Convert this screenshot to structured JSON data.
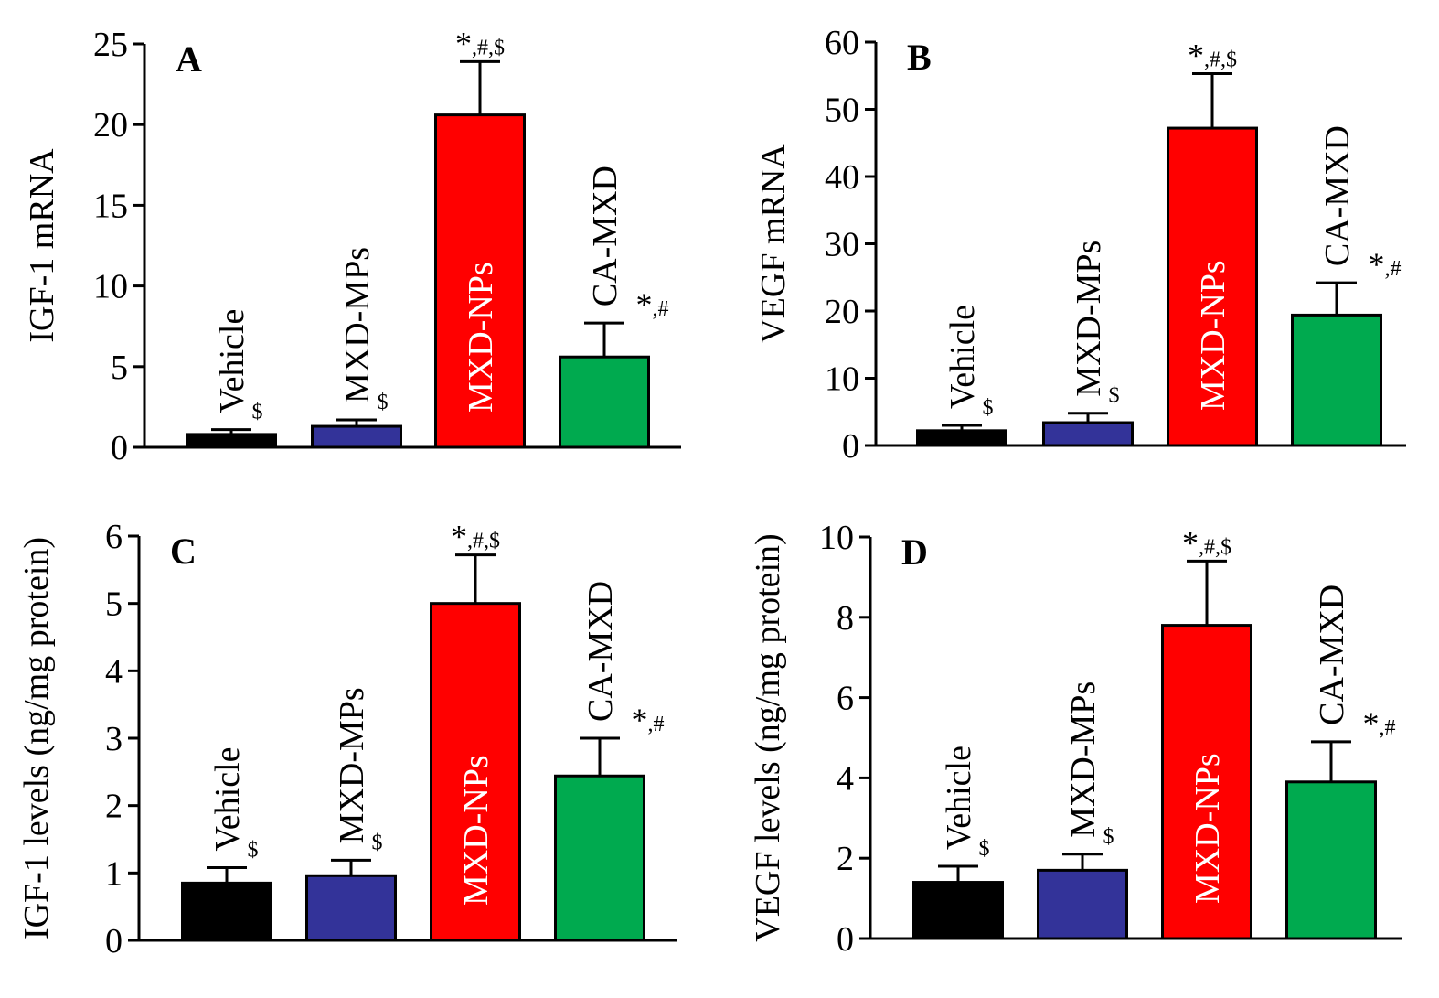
{
  "chart_data": [
    {
      "panel": "A",
      "type": "bar",
      "title": "A",
      "xlabel": "",
      "ylabel": "IGF-1 mRNA",
      "ylim": [
        0,
        25
      ],
      "yticks": [
        0,
        5,
        10,
        15,
        20,
        25
      ],
      "categories": [
        "Vehicle",
        "MXD-MPs",
        "MXD-NPs",
        "CA-MXD"
      ],
      "values": [
        0.8,
        1.3,
        20.6,
        5.6
      ],
      "errors": [
        0.3,
        0.4,
        3.3,
        2.1
      ],
      "colors": [
        "#000000",
        "#333399",
        "#ff0000",
        "#00aa4f"
      ],
      "label_colors": [
        "#000000",
        "#000000",
        "#ffffff",
        "#000000"
      ],
      "significance": [
        "$",
        "$",
        "*,#,$",
        "*,#"
      ]
    },
    {
      "panel": "B",
      "type": "bar",
      "title": "B",
      "xlabel": "",
      "ylabel": "VEGF mRNA",
      "ylim": [
        0,
        60
      ],
      "yticks": [
        0,
        10,
        20,
        30,
        40,
        50,
        60
      ],
      "categories": [
        "Vehicle",
        "MXD-MPs",
        "MXD-NPs",
        "CA-MXD"
      ],
      "values": [
        2.2,
        3.4,
        47.2,
        19.4
      ],
      "errors": [
        0.8,
        1.4,
        8.1,
        4.8
      ],
      "colors": [
        "#000000",
        "#333399",
        "#ff0000",
        "#00aa4f"
      ],
      "label_colors": [
        "#000000",
        "#000000",
        "#ffffff",
        "#000000"
      ],
      "significance": [
        "$",
        "$",
        "*,#,$",
        "*,#"
      ]
    },
    {
      "panel": "C",
      "type": "bar",
      "title": "C",
      "xlabel": "",
      "ylabel": "IGF-1 levels (ng/mg protein)",
      "ylim": [
        0,
        6
      ],
      "yticks": [
        0,
        1,
        2,
        3,
        4,
        5,
        6
      ],
      "categories": [
        "Vehicle",
        "MXD-MPs",
        "MXD-NPs",
        "CA-MXD"
      ],
      "values": [
        0.85,
        0.96,
        5.0,
        2.44
      ],
      "errors": [
        0.23,
        0.23,
        0.72,
        0.56
      ],
      "colors": [
        "#000000",
        "#333399",
        "#ff0000",
        "#00aa4f"
      ],
      "label_colors": [
        "#000000",
        "#000000",
        "#ffffff",
        "#000000"
      ],
      "significance": [
        "$",
        "$",
        "*,#,$",
        "*,#"
      ]
    },
    {
      "panel": "D",
      "type": "bar",
      "title": "D",
      "xlabel": "",
      "ylabel": "VEGF levels (ng/mg protein)",
      "ylim": [
        0,
        10
      ],
      "yticks": [
        0,
        2,
        4,
        6,
        8,
        10
      ],
      "categories": [
        "Vehicle",
        "MXD-MPs",
        "MXD-NPs",
        "CA-MXD"
      ],
      "values": [
        1.4,
        1.7,
        7.8,
        3.9
      ],
      "errors": [
        0.4,
        0.4,
        1.6,
        1.0
      ],
      "colors": [
        "#000000",
        "#333399",
        "#ff0000",
        "#00aa4f"
      ],
      "label_colors": [
        "#000000",
        "#000000",
        "#ffffff",
        "#000000"
      ],
      "significance": [
        "$",
        "$",
        "*,#,$",
        "*,#"
      ]
    }
  ]
}
